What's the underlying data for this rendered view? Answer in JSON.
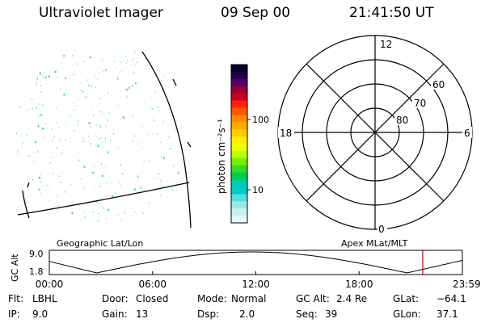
{
  "header": {
    "instrument": "Ultraviolet Imager",
    "date": "09 Sep 00",
    "time": "21:41:50 UT"
  },
  "colorbar": {
    "unit_label": "photon cm⁻²s⁻¹",
    "ticks": [
      {
        "label": "100",
        "value": 100
      },
      {
        "label": "10",
        "value": 10
      }
    ],
    "colors": [
      "#000033",
      "#220044",
      "#550066",
      "#990033",
      "#cc0022",
      "#ff2200",
      "#ff5500",
      "#ff8800",
      "#ffaa00",
      "#ffcc00",
      "#ffee00",
      "#eeff00",
      "#bbff00",
      "#77ee00",
      "#33dd22",
      "#00cc55",
      "#00ccaa",
      "#00cccc",
      "#55dddd",
      "#99e8e8",
      "#c8f0f0",
      "#e8f8f8"
    ]
  },
  "polar_plot": {
    "mlt_labels": {
      "top": "12",
      "left": "18",
      "right": "6",
      "bottom": "0"
    },
    "lat_labels": [
      "60",
      "70",
      "80"
    ]
  },
  "lower_panel": {
    "left_title": "Geographic Lat/Lon",
    "right_title": "Apex MLat/MLT",
    "y_axis_label": "GC Alt",
    "y_ticks": [
      "9.0",
      "1.8"
    ],
    "time_ticks": [
      "00:00",
      "06:00",
      "12:00",
      "18:00",
      "23:59"
    ],
    "current_time_fraction": 0.904
  },
  "info": {
    "filter": {
      "label": "Flt:",
      "value": "LBHL"
    },
    "door": {
      "label": "Door:",
      "value": "Closed"
    },
    "mode": {
      "label": "Mode:",
      "value": "Normal"
    },
    "gc_alt": {
      "label": "GC Alt:",
      "value": "2.4 Re"
    },
    "glat": {
      "label": "GLat:",
      "value": "−64.1"
    },
    "ip": {
      "label": "IP:",
      "value": "9.0"
    },
    "gain": {
      "label": "Gain:",
      "value": "13"
    },
    "dsp": {
      "label": "Dsp:",
      "value": "2.0"
    },
    "seq": {
      "label": "Seq:",
      "value": "39"
    },
    "glon": {
      "label": "GLon:",
      "value": "37.1"
    }
  }
}
